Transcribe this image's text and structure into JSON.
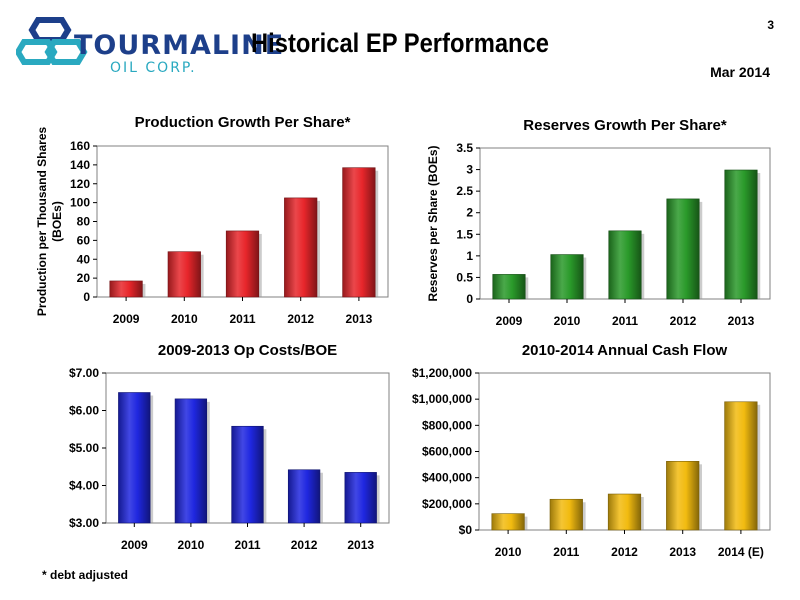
{
  "header": {
    "logo_word": "TOURMALINE",
    "logo_sub": "OIL CORP.",
    "title": "Historical EP Performance",
    "page_number": "3",
    "date": "Mar 2014"
  },
  "footnote": "* debt adjusted",
  "colors": {
    "red": "#e8262b",
    "green": "#2a9a2a",
    "blue": "#1f27e0",
    "gold": "#f2bb10",
    "logo_navy": "#1d3f8a",
    "logo_teal": "#2aa9c0"
  },
  "chart_data": [
    {
      "type": "bar",
      "title": "Production Growth Per Share*",
      "ylabel": "Production per Thousand Shares (BOEs)",
      "ylabel_lines": [
        "Production per Thousand Shares",
        "(BOEs)"
      ],
      "categories": [
        "2009",
        "2010",
        "2011",
        "2012",
        "2013"
      ],
      "values": [
        17,
        48,
        70,
        105,
        137
      ],
      "ylim": [
        0,
        160
      ],
      "yticks": [
        0,
        20,
        40,
        60,
        80,
        100,
        120,
        140,
        160
      ],
      "ytick_labels": [
        "0",
        "20",
        "40",
        "60",
        "80",
        "100",
        "120",
        "140",
        "160"
      ],
      "color": "#e8262b",
      "grid": false
    },
    {
      "type": "bar",
      "title": "Reserves Growth Per Share*",
      "ylabel": "Reserves per Share (BOEs)",
      "ylabel_lines": [
        "Reserves per Share (BOEs)"
      ],
      "categories": [
        "2009",
        "2010",
        "2011",
        "2012",
        "2013"
      ],
      "values": [
        0.57,
        1.03,
        1.58,
        2.32,
        2.99
      ],
      "ylim": [
        0,
        3.5
      ],
      "yticks": [
        0,
        0.5,
        1,
        1.5,
        2,
        2.5,
        3,
        3.5
      ],
      "ytick_labels": [
        "0",
        "0.5",
        "1",
        "1.5",
        "2",
        "2.5",
        "3",
        "3.5"
      ],
      "color": "#2a9a2a",
      "grid": false
    },
    {
      "type": "bar",
      "title": "2009-2013 Op Costs/BOE",
      "ylabel": "",
      "ylabel_lines": [],
      "categories": [
        "2009",
        "2010",
        "2011",
        "2012",
        "2013"
      ],
      "values": [
        6.48,
        6.31,
        5.58,
        4.42,
        4.35
      ],
      "ylim": [
        3,
        7
      ],
      "yticks": [
        3,
        4,
        5,
        6,
        7
      ],
      "ytick_labels": [
        "$3.00",
        "$4.00",
        "$5.00",
        "$6.00",
        "$7.00"
      ],
      "color": "#1f27e0",
      "grid": false
    },
    {
      "type": "bar",
      "title": "2010-2014 Annual Cash Flow",
      "ylabel": "",
      "ylabel_lines": [],
      "categories": [
        "2010",
        "2011",
        "2012",
        "2013",
        "2014 (E)"
      ],
      "values": [
        125000,
        235000,
        275000,
        525000,
        980000
      ],
      "ylim": [
        0,
        1200000
      ],
      "yticks": [
        0,
        200000,
        400000,
        600000,
        800000,
        1000000,
        1200000
      ],
      "ytick_labels": [
        "$0",
        "$200,000",
        "$400,000",
        "$600,000",
        "$800,000",
        "$1,000,000",
        "$1,200,000"
      ],
      "color": "#f2bb10",
      "grid": false
    }
  ]
}
